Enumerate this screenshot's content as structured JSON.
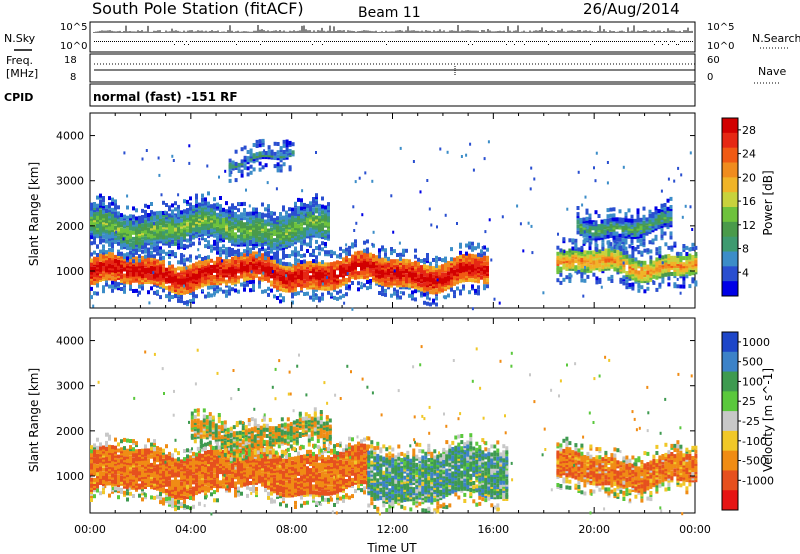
{
  "header": {
    "station": "South Pole Station (fitACF)",
    "beam": "Beam 11",
    "date": "26/Aug/2014"
  },
  "status_panels": {
    "nsky_label": "N.Sky",
    "nsearch_label": "N.Search",
    "freq_label_line1": "Freq.",
    "freq_label_line2": "[MHz]",
    "nave_label": "Nave",
    "cpid_label": "CPID",
    "cpid_value": "normal (fast) -151 RF",
    "noise_ticks": [
      "10^5",
      "10^0"
    ],
    "freq_ticks": [
      "18",
      "8"
    ],
    "nave_ticks": [
      "60",
      "0"
    ]
  },
  "chart_data": [
    {
      "type": "heatmap",
      "panel": "power",
      "ylabel": "Slant Range [km]",
      "ylim": [
        180,
        4500
      ],
      "yticks": [
        1000,
        2000,
        3000,
        4000
      ],
      "xlim": [
        0,
        24
      ],
      "colorbar": {
        "label": "Power [dB]",
        "ticks": [
          4,
          8,
          12,
          16,
          20,
          24,
          28
        ],
        "range": [
          0,
          30
        ],
        "colors": [
          "#0000e6",
          "#2a4fd0",
          "#3c8dc8",
          "#3e9a70",
          "#4a9a4a",
          "#6ec23c",
          "#c8d23c",
          "#f0b428",
          "#f08c1e",
          "#f05a14",
          "#e62814",
          "#d20000"
        ]
      },
      "echo_bands": [
        {
          "name": "main",
          "start_h": 0.0,
          "end_h": 15.8,
          "core_km": [
            650,
            1250
          ],
          "value_db": 24
        },
        {
          "name": "main-late",
          "start_h": 18.5,
          "end_h": 24.0,
          "core_km": [
            900,
            1350
          ],
          "value_db": 16
        },
        {
          "name": "upper",
          "start_h": 0.0,
          "end_h": 9.5,
          "core_km": [
            1600,
            2300
          ],
          "value_db": 8
        },
        {
          "name": "upper-late",
          "start_h": 19.3,
          "end_h": 23.0,
          "core_km": [
            1800,
            2200
          ],
          "value_db": 6
        },
        {
          "name": "patch-3500",
          "start_h": 5.5,
          "end_h": 8.0,
          "core_km": [
            3400,
            3550
          ],
          "value_db": 4
        }
      ]
    },
    {
      "type": "heatmap",
      "panel": "velocity",
      "ylabel": "Slant Range [km]",
      "ylim": [
        180,
        4500
      ],
      "yticks": [
        1000,
        2000,
        3000,
        4000
      ],
      "xlim": [
        0,
        24
      ],
      "colorbar": {
        "label": "Velocity [m s^-1]",
        "ticks": [
          1000,
          500,
          100,
          25,
          -25,
          -100,
          -500,
          -1000
        ],
        "colors": [
          "#1e46c8",
          "#3c82c8",
          "#3e9a50",
          "#5ac83c",
          "#c8c8c8",
          "#f0c828",
          "#f08c14",
          "#e6501e",
          "#e61414"
        ]
      },
      "echo_bands": [
        {
          "name": "main",
          "start_h": 0.0,
          "end_h": 11.0,
          "core_km": [
            650,
            1500
          ],
          "value_ms": -300
        },
        {
          "name": "mixed",
          "start_h": 11.0,
          "end_h": 16.5,
          "core_km": [
            500,
            1500
          ],
          "value_ms": 200
        },
        {
          "name": "late",
          "start_h": 18.5,
          "end_h": 24.0,
          "core_km": [
            800,
            1400
          ],
          "value_ms": -250
        },
        {
          "name": "upper-grey",
          "start_h": 4.0,
          "end_h": 9.5,
          "core_km": [
            1700,
            2100
          ],
          "value_ms": 0
        }
      ]
    }
  ],
  "x_axis": {
    "label": "Time UT",
    "ticks": [
      "00:00",
      "04:00",
      "08:00",
      "12:00",
      "16:00",
      "20:00",
      "00:00"
    ]
  }
}
